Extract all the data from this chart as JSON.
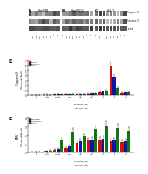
{
  "panel_labels": [
    "A",
    "B",
    "C"
  ],
  "cell_lines": [
    "HepG2B",
    "HepG2Cl2",
    "Huh-7"
  ],
  "row_labels": [
    "Caspase 9",
    "Caspase 3",
    "actin"
  ],
  "wb_n_cols": 9,
  "wb_n_rows": 3,
  "bar_chart_D": {
    "label": "D",
    "x_labels": [
      "0",
      "0.001",
      "0.005",
      "0.01",
      "0.5",
      "0.1",
      "0.5",
      "1",
      "5"
    ],
    "series": {
      "HepG2B": [
        0.05,
        0.06,
        0.07,
        0.1,
        0.13,
        0.25,
        0.55,
        5.8,
        0.35
      ],
      "HepG2Cl2": [
        0.05,
        0.06,
        0.08,
        0.1,
        0.16,
        0.28,
        0.65,
        3.6,
        0.45
      ],
      "Huh-7": [
        0.05,
        0.05,
        0.07,
        0.09,
        0.18,
        0.35,
        0.85,
        1.4,
        0.55
      ]
    },
    "errors": {
      "HepG2B": [
        0.005,
        0.01,
        0.01,
        0.015,
        0.025,
        0.04,
        0.09,
        0.85,
        0.09
      ],
      "HepG2Cl2": [
        0.005,
        0.01,
        0.01,
        0.015,
        0.025,
        0.05,
        0.11,
        0.55,
        0.1
      ],
      "Huh-7": [
        0.005,
        0.005,
        0.01,
        0.01,
        0.03,
        0.06,
        0.13,
        0.28,
        0.13
      ]
    },
    "ylabel": "Caspase 9\n(Cleaved/Total)",
    "xlabel_top": "Erlotinib (μM)",
    "xlabel_bot": "ABT-263 (μM)",
    "ylim": [
      0,
      7
    ],
    "yticks": [
      0,
      1,
      2,
      3,
      4,
      5,
      6,
      7
    ]
  },
  "bar_chart_E": {
    "label": "E",
    "x_labels": [
      "0",
      "0.001",
      "0.005",
      "0.01",
      "0.5",
      "0.1",
      "0.5",
      "1",
      "5"
    ],
    "series": {
      "HepG2B": [
        0.08,
        0.12,
        0.35,
        0.55,
        1.1,
        1.4,
        1.5,
        1.3,
        1.2
      ],
      "HepG2Cl2": [
        0.1,
        0.18,
        0.45,
        0.7,
        1.3,
        1.5,
        1.6,
        1.4,
        1.3
      ],
      "Huh-7": [
        0.12,
        0.25,
        1.4,
        2.4,
        1.9,
        2.7,
        3.1,
        2.8,
        2.5
      ]
    },
    "errors": {
      "HepG2B": [
        0.015,
        0.025,
        0.07,
        0.1,
        0.18,
        0.22,
        0.25,
        0.22,
        0.2
      ],
      "HepG2Cl2": [
        0.015,
        0.03,
        0.09,
        0.12,
        0.22,
        0.25,
        0.28,
        0.24,
        0.22
      ],
      "Huh-7": [
        0.02,
        0.05,
        0.22,
        0.4,
        0.32,
        0.45,
        0.55,
        0.48,
        0.44
      ]
    },
    "ylabel": "PARP\n(Cleaved/Total)",
    "xlabel_top": "Erlotinib (μM)",
    "xlabel_bot": "ABT-263 (μM)",
    "ylim": [
      0,
      4
    ],
    "yticks": [
      0,
      1,
      2,
      3,
      4
    ]
  },
  "legend_labels": {
    "D": [
      "HepG2B",
      "HepG2Cl2",
      "Huh-7"
    ],
    "E": [
      "E-HepG2B",
      "E-HepG2Cl2",
      "E-Huh-7"
    ]
  },
  "colors": {
    "HepG2B": "#cc1111",
    "HepG2Cl2": "#1111aa",
    "Huh-7": "#117711"
  },
  "bg_color": "#ffffff"
}
